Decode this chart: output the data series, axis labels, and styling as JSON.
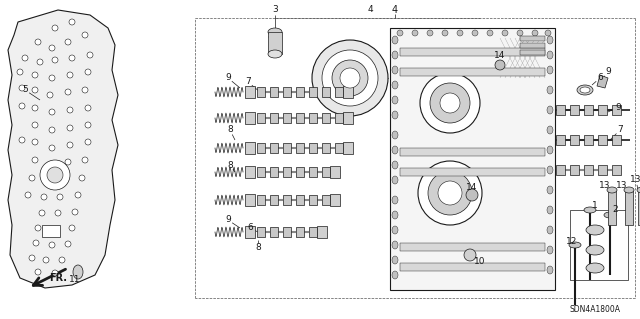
{
  "part_number": "SDN4A1800A",
  "bg_color": "#ffffff",
  "lc": "#1a1a1a",
  "fig_width": 6.4,
  "fig_height": 3.19,
  "dpi": 100
}
